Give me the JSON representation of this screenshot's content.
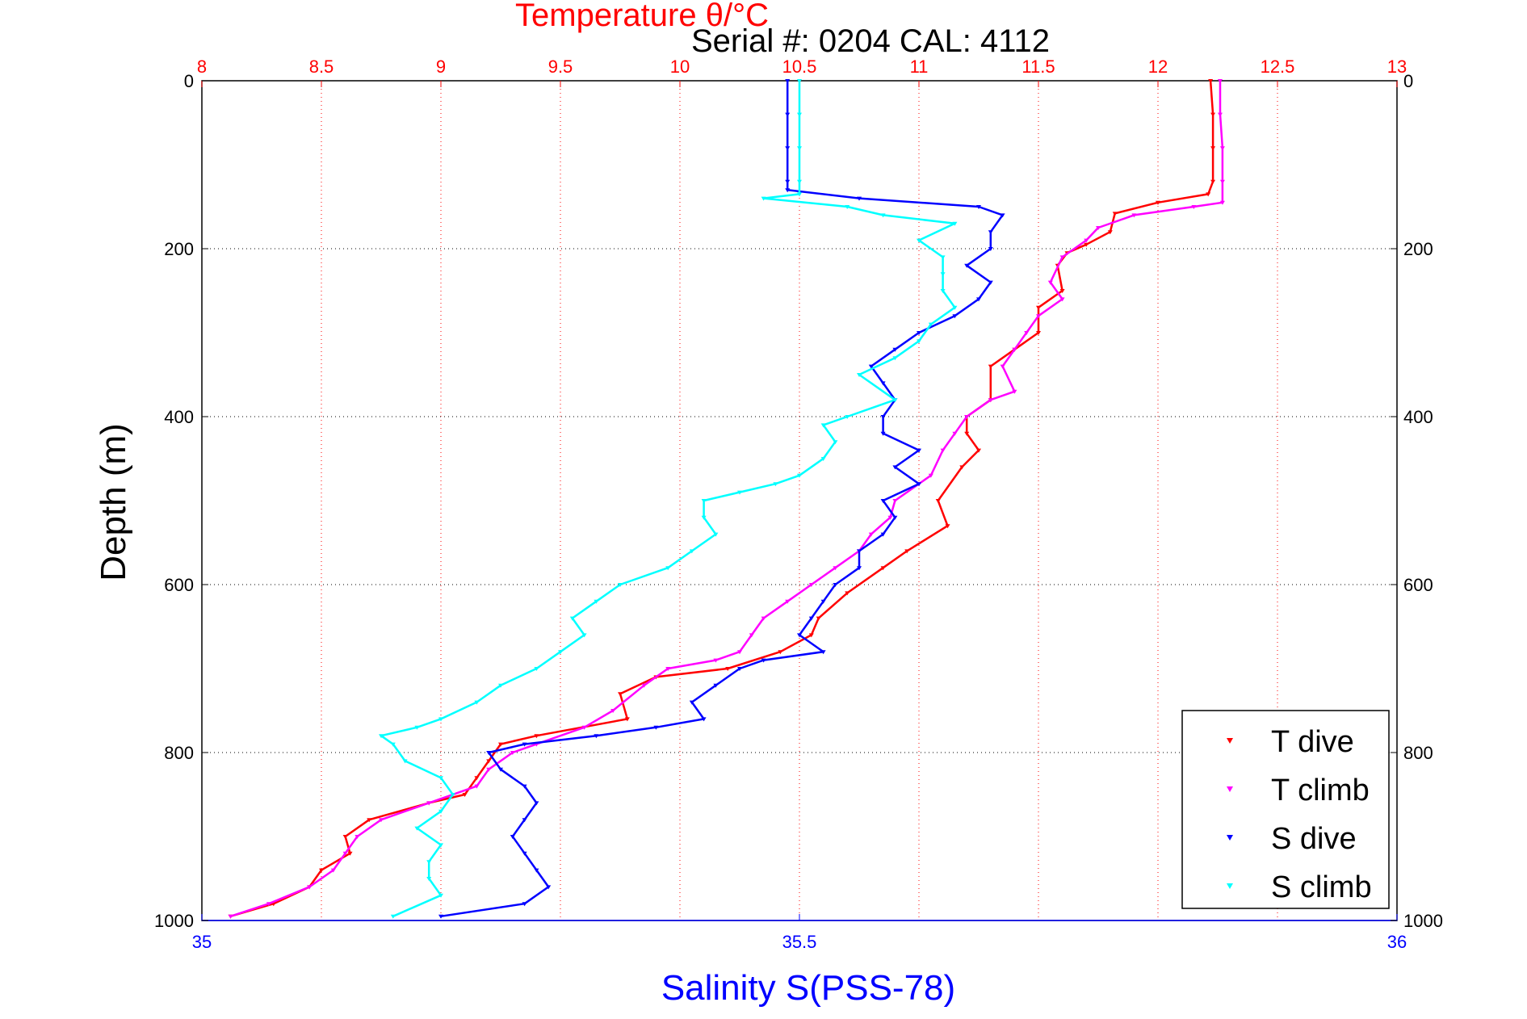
{
  "chart_data": {
    "type": "scatter",
    "title": "Temperature θ/°C",
    "subtitle": "Serial #: 0204  CAL: 4112",
    "xlabel": "Salinity S(PSS-78)",
    "ylabel": "Depth (m)",
    "x_top": {
      "label": "Temperature θ/°C",
      "lim": [
        8,
        13
      ],
      "ticks": [
        "8",
        "8.5",
        "9",
        "9.5",
        "10",
        "10.5",
        "11",
        "11.5",
        "12",
        "12.5",
        "13"
      ],
      "color": "#ff0000"
    },
    "x_bottom": {
      "label": "Salinity S(PSS-78)",
      "lim": [
        35,
        36
      ],
      "ticks": [
        "35",
        "35.5",
        "36"
      ],
      "color": "#0000ff"
    },
    "y": {
      "lim": [
        0,
        1000
      ],
      "reversed": true,
      "ticks_left": [
        "0",
        "200",
        "400",
        "600",
        "800",
        "1000"
      ],
      "ticks_right": [
        "0",
        "200",
        "400",
        "600",
        "800",
        "1000"
      ]
    },
    "grid": true,
    "legend_position": "bottom-right",
    "series": [
      {
        "name": "T dive",
        "axis": "temperature",
        "color": "#ff0000",
        "points": [
          [
            12.22,
            0
          ],
          [
            12.23,
            40
          ],
          [
            12.23,
            80
          ],
          [
            12.23,
            120
          ],
          [
            12.21,
            135
          ],
          [
            12.0,
            145
          ],
          [
            11.82,
            158
          ],
          [
            11.8,
            180
          ],
          [
            11.7,
            195
          ],
          [
            11.62,
            205
          ],
          [
            11.58,
            220
          ],
          [
            11.6,
            250
          ],
          [
            11.5,
            270
          ],
          [
            11.5,
            300
          ],
          [
            11.4,
            320
          ],
          [
            11.3,
            340
          ],
          [
            11.3,
            380
          ],
          [
            11.2,
            400
          ],
          [
            11.2,
            420
          ],
          [
            11.25,
            440
          ],
          [
            11.18,
            460
          ],
          [
            11.08,
            500
          ],
          [
            11.12,
            530
          ],
          [
            10.95,
            560
          ],
          [
            10.85,
            580
          ],
          [
            10.7,
            610
          ],
          [
            10.58,
            640
          ],
          [
            10.55,
            660
          ],
          [
            10.42,
            680
          ],
          [
            10.2,
            700
          ],
          [
            9.9,
            710
          ],
          [
            9.75,
            730
          ],
          [
            9.78,
            760
          ],
          [
            9.4,
            780
          ],
          [
            9.25,
            790
          ],
          [
            9.2,
            810
          ],
          [
            9.15,
            830
          ],
          [
            9.1,
            850
          ],
          [
            8.95,
            860
          ],
          [
            8.7,
            880
          ],
          [
            8.6,
            900
          ],
          [
            8.62,
            920
          ],
          [
            8.5,
            940
          ],
          [
            8.45,
            960
          ],
          [
            8.3,
            980
          ],
          [
            8.12,
            995
          ]
        ]
      },
      {
        "name": "T climb",
        "axis": "temperature",
        "color": "#ff00ff",
        "points": [
          [
            12.26,
            0
          ],
          [
            12.26,
            40
          ],
          [
            12.27,
            80
          ],
          [
            12.27,
            120
          ],
          [
            12.27,
            145
          ],
          [
            12.15,
            150
          ],
          [
            11.9,
            160
          ],
          [
            11.75,
            175
          ],
          [
            11.7,
            190
          ],
          [
            11.6,
            210
          ],
          [
            11.55,
            240
          ],
          [
            11.6,
            260
          ],
          [
            11.5,
            280
          ],
          [
            11.45,
            300
          ],
          [
            11.4,
            320
          ],
          [
            11.35,
            340
          ],
          [
            11.4,
            370
          ],
          [
            11.3,
            380
          ],
          [
            11.2,
            400
          ],
          [
            11.15,
            420
          ],
          [
            11.1,
            440
          ],
          [
            11.05,
            470
          ],
          [
            11.0,
            480
          ],
          [
            10.9,
            500
          ],
          [
            10.88,
            520
          ],
          [
            10.8,
            540
          ],
          [
            10.75,
            560
          ],
          [
            10.65,
            580
          ],
          [
            10.55,
            600
          ],
          [
            10.45,
            620
          ],
          [
            10.35,
            640
          ],
          [
            10.3,
            660
          ],
          [
            10.25,
            680
          ],
          [
            10.15,
            690
          ],
          [
            9.95,
            700
          ],
          [
            9.85,
            720
          ],
          [
            9.72,
            750
          ],
          [
            9.6,
            770
          ],
          [
            9.4,
            790
          ],
          [
            9.3,
            800
          ],
          [
            9.2,
            820
          ],
          [
            9.15,
            840
          ],
          [
            8.95,
            860
          ],
          [
            8.75,
            880
          ],
          [
            8.65,
            900
          ],
          [
            8.6,
            920
          ],
          [
            8.55,
            940
          ],
          [
            8.45,
            960
          ],
          [
            8.28,
            980
          ],
          [
            8.12,
            995
          ]
        ]
      },
      {
        "name": "S dive",
        "axis": "salinity",
        "color": "#0000ff",
        "points": [
          [
            35.49,
            0
          ],
          [
            35.49,
            40
          ],
          [
            35.49,
            80
          ],
          [
            35.49,
            120
          ],
          [
            35.49,
            130
          ],
          [
            35.55,
            140
          ],
          [
            35.65,
            150
          ],
          [
            35.67,
            160
          ],
          [
            35.66,
            180
          ],
          [
            35.66,
            200
          ],
          [
            35.64,
            220
          ],
          [
            35.66,
            240
          ],
          [
            35.65,
            260
          ],
          [
            35.63,
            280
          ],
          [
            35.6,
            300
          ],
          [
            35.58,
            320
          ],
          [
            35.56,
            340
          ],
          [
            35.57,
            360
          ],
          [
            35.58,
            380
          ],
          [
            35.57,
            400
          ],
          [
            35.57,
            420
          ],
          [
            35.6,
            440
          ],
          [
            35.58,
            460
          ],
          [
            35.6,
            480
          ],
          [
            35.57,
            500
          ],
          [
            35.58,
            520
          ],
          [
            35.57,
            540
          ],
          [
            35.55,
            560
          ],
          [
            35.55,
            580
          ],
          [
            35.53,
            600
          ],
          [
            35.52,
            620
          ],
          [
            35.51,
            640
          ],
          [
            35.5,
            660
          ],
          [
            35.52,
            680
          ],
          [
            35.47,
            690
          ],
          [
            35.45,
            700
          ],
          [
            35.43,
            720
          ],
          [
            35.41,
            740
          ],
          [
            35.42,
            760
          ],
          [
            35.38,
            770
          ],
          [
            35.33,
            780
          ],
          [
            35.27,
            790
          ],
          [
            35.24,
            800
          ],
          [
            35.25,
            820
          ],
          [
            35.27,
            840
          ],
          [
            35.28,
            860
          ],
          [
            35.27,
            880
          ],
          [
            35.26,
            900
          ],
          [
            35.27,
            920
          ],
          [
            35.28,
            940
          ],
          [
            35.29,
            960
          ],
          [
            35.27,
            980
          ],
          [
            35.2,
            995
          ]
        ]
      },
      {
        "name": "S climb",
        "axis": "salinity",
        "color": "#00ffff",
        "points": [
          [
            35.5,
            0
          ],
          [
            35.5,
            40
          ],
          [
            35.5,
            80
          ],
          [
            35.5,
            120
          ],
          [
            35.5,
            135
          ],
          [
            35.47,
            140
          ],
          [
            35.54,
            150
          ],
          [
            35.57,
            160
          ],
          [
            35.63,
            170
          ],
          [
            35.6,
            190
          ],
          [
            35.62,
            210
          ],
          [
            35.62,
            230
          ],
          [
            35.62,
            250
          ],
          [
            35.63,
            270
          ],
          [
            35.61,
            290
          ],
          [
            35.6,
            310
          ],
          [
            35.58,
            330
          ],
          [
            35.55,
            350
          ],
          [
            35.58,
            380
          ],
          [
            35.54,
            400
          ],
          [
            35.52,
            410
          ],
          [
            35.53,
            430
          ],
          [
            35.52,
            450
          ],
          [
            35.5,
            470
          ],
          [
            35.48,
            480
          ],
          [
            35.45,
            490
          ],
          [
            35.42,
            500
          ],
          [
            35.42,
            520
          ],
          [
            35.43,
            540
          ],
          [
            35.41,
            560
          ],
          [
            35.39,
            580
          ],
          [
            35.35,
            600
          ],
          [
            35.33,
            620
          ],
          [
            35.31,
            640
          ],
          [
            35.32,
            660
          ],
          [
            35.3,
            680
          ],
          [
            35.28,
            700
          ],
          [
            35.25,
            720
          ],
          [
            35.23,
            740
          ],
          [
            35.2,
            760
          ],
          [
            35.18,
            770
          ],
          [
            35.15,
            780
          ],
          [
            35.16,
            790
          ],
          [
            35.17,
            810
          ],
          [
            35.2,
            830
          ],
          [
            35.21,
            850
          ],
          [
            35.2,
            870
          ],
          [
            35.18,
            890
          ],
          [
            35.2,
            910
          ],
          [
            35.19,
            930
          ],
          [
            35.19,
            950
          ],
          [
            35.2,
            970
          ],
          [
            35.16,
            995
          ]
        ]
      }
    ]
  }
}
